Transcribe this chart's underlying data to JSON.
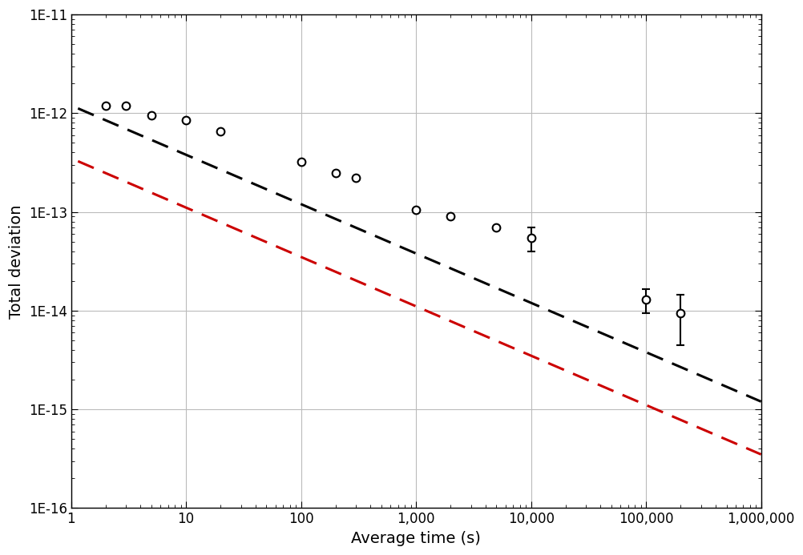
{
  "xlabel": "Average time (s)",
  "ylabel": "Total deviation",
  "xlim": [
    1,
    1000000
  ],
  "ylim": [
    1e-16,
    1e-11
  ],
  "data_points_x": [
    2,
    3,
    5,
    10,
    20,
    100,
    200,
    300,
    1000,
    2000,
    5000,
    10000,
    100000,
    200000
  ],
  "data_points_y": [
    1.2e-12,
    1.2e-12,
    9.5e-13,
    8.5e-13,
    6.5e-13,
    3.2e-13,
    2.5e-13,
    2.2e-13,
    1.05e-13,
    9e-14,
    7e-14,
    5.5e-14,
    1.3e-14,
    9.5e-15
  ],
  "data_errors_y": [
    0,
    0,
    0,
    0,
    0,
    0,
    0,
    0,
    0,
    0,
    0,
    1.5e-14,
    3.5e-15,
    5e-15
  ],
  "black_line_coeff": 1.2e-12,
  "black_line_slope": -0.5,
  "red_line_coeff": 3.5e-13,
  "red_line_slope": -0.5,
  "black_line_color": "#000000",
  "red_line_color": "#cc0000",
  "data_color": "#000000",
  "grid_color": "#bbbbbb",
  "background_color": "#ffffff",
  "xlabel_fontsize": 14,
  "ylabel_fontsize": 14,
  "tick_fontsize": 12,
  "marker_size": 7,
  "line_width": 2.2
}
